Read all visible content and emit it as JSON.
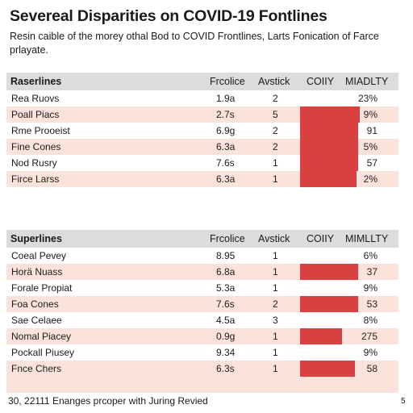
{
  "title": "Severeal Disparities on COVID-19 Fontlines",
  "subtitle": "Resin caible of the morey othal Bod to COVID Frontlines, Larts Fonication of Farce prlayate.",
  "footer": "30, 22111 Enanges prcoper with Juring Revied",
  "page_number": "5",
  "colors": {
    "bar": "#d94141",
    "stripe": "#fbe3dc",
    "header": "#dcdcdc"
  },
  "chart_data": [
    {
      "type": "table",
      "columns": [
        "Raserlines",
        "Frcolice",
        "Avstick",
        "COIIY",
        "MIADLTY"
      ],
      "rows": [
        {
          "name": "Rea Ruovs",
          "c2": "1.9a",
          "c3": "2",
          "c5": "23%",
          "bar": 0
        },
        {
          "name": "Poall Piacs",
          "c2": "2.7s",
          "c3": "5",
          "c5": "9%",
          "bar": 0.74
        },
        {
          "name": "Rme Prooeist",
          "c2": "6.9g",
          "c3": "2",
          "c5": "91",
          "bar": 0.72
        },
        {
          "name": "Fine Cones",
          "c2": "6.3a",
          "c3": "2",
          "c5": "5%",
          "bar": 0.72
        },
        {
          "name": "Nod Rusry",
          "c2": "7.6s",
          "c3": "1",
          "c5": "57",
          "bar": 0.72
        },
        {
          "name": "Firce Larss",
          "c2": "6.3a",
          "c3": "1",
          "c5": "2%",
          "bar": 0.7
        }
      ]
    },
    {
      "type": "table",
      "columns": [
        "Superlines",
        "Frcolice",
        "Avstick",
        "COIIY",
        "MIMLLTY"
      ],
      "rows": [
        {
          "name": "Coeal Pevey",
          "c2": "8.95",
          "c3": "1",
          "c5": "6%",
          "bar": 0
        },
        {
          "name": "Horä Nuass",
          "c2": "6.8a",
          "c3": "1",
          "c5": "37",
          "bar": 0.72
        },
        {
          "name": "Forale Propiat",
          "c2": "5.3a",
          "c3": "1",
          "c5": "9%",
          "bar": 0
        },
        {
          "name": "Foa Cones",
          "c2": "7.6s",
          "c3": "2",
          "c5": "53",
          "bar": 0.72
        },
        {
          "name": "Sae Celaee",
          "c2": "4.5a",
          "c3": "3",
          "c5": "8%",
          "bar": 0
        },
        {
          "name": "Nomal Piacey",
          "c2": "0.9g",
          "c3": "1",
          "c5": "275",
          "bar": 0.52
        },
        {
          "name": "Pockall Piusey",
          "c2": "9.34",
          "c3": "1",
          "c5": "9%",
          "bar": 0
        },
        {
          "name": "Fnce Chers",
          "c2": "6.3s",
          "c3": "1",
          "c5": "58",
          "bar": 0.68
        }
      ]
    }
  ]
}
